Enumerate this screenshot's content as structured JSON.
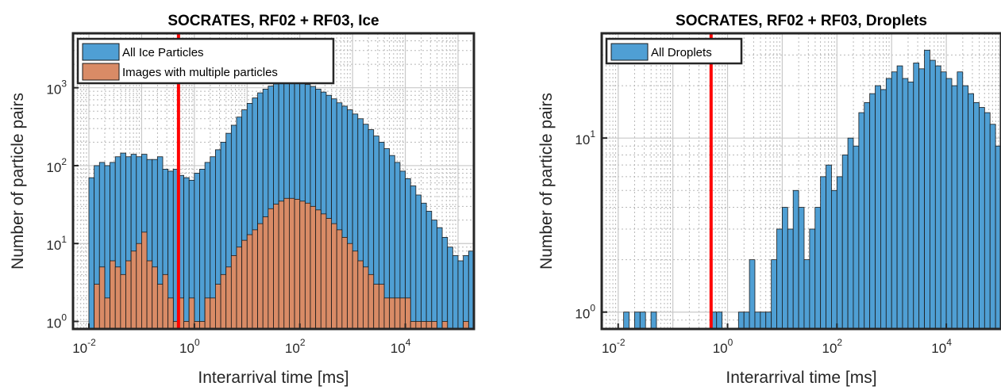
{
  "chart_data": [
    {
      "type": "bar",
      "title": "SOCRATES, RF02 + RF03, Ice",
      "xlabel": "Interarrival time [ms]",
      "ylabel": "Number of particle pairs",
      "xscale": "log",
      "yscale": "log",
      "xlim": [
        0.005,
        200000
      ],
      "ylim": [
        0.8,
        5000
      ],
      "xticks": [
        0.01,
        1,
        100,
        10000
      ],
      "yticks": [
        1,
        10,
        100,
        1000
      ],
      "xtick_labels": [
        {
          "base": "10",
          "exp": "-2"
        },
        {
          "base": "10",
          "exp": "0"
        },
        {
          "base": "10",
          "exp": "2"
        },
        {
          "base": "10",
          "exp": "4"
        }
      ],
      "ytick_labels": [
        {
          "base": "10",
          "exp": "0"
        },
        {
          "base": "10",
          "exp": "1"
        },
        {
          "base": "10",
          "exp": "2"
        },
        {
          "base": "10",
          "exp": "3"
        }
      ],
      "grid": true,
      "minor_grid": true,
      "legend_position": "top-left",
      "threshold_line_x": 0.5,
      "threshold_line_color": "#ff0000",
      "bin_log10_start": -2.0,
      "bin_log10_width": 0.1,
      "series": [
        {
          "name": "All Ice Particles",
          "color": "#4f9fd4",
          "values": [
            70,
            100,
            110,
            100,
            110,
            130,
            145,
            130,
            140,
            130,
            140,
            120,
            120,
            130,
            90,
            85,
            90,
            75,
            70,
            65,
            80,
            90,
            110,
            130,
            160,
            200,
            260,
            330,
            420,
            520,
            630,
            740,
            860,
            960,
            1050,
            1120,
            1160,
            1180,
            1180,
            1170,
            1140,
            1100,
            1040,
            960,
            880,
            800,
            720,
            640,
            580,
            520,
            460,
            400,
            340,
            290,
            240,
            200,
            165,
            135,
            110,
            85,
            68,
            55,
            42,
            33,
            26,
            20,
            16,
            12,
            9,
            7,
            6,
            7,
            8,
            6,
            5
          ]
        },
        {
          "name": "Images with multiple particles",
          "color": "#d98b66",
          "values": [
            0,
            3,
            5,
            2,
            6,
            5,
            4,
            6,
            8,
            10,
            14,
            6,
            5,
            3,
            4,
            2,
            1,
            2,
            1,
            2,
            1,
            1,
            2,
            2,
            3,
            4,
            5,
            7,
            9,
            11,
            13,
            15,
            18,
            22,
            28,
            32,
            35,
            38,
            38,
            37,
            35,
            33,
            30,
            27,
            24,
            21,
            18,
            15,
            12,
            10,
            8,
            6,
            5,
            4,
            3,
            3,
            2,
            2,
            2,
            2,
            2,
            1,
            1,
            1,
            1,
            1,
            0,
            1,
            0,
            0,
            0,
            1,
            0,
            0,
            0
          ]
        }
      ]
    },
    {
      "type": "bar",
      "title": "SOCRATES, RF02 + RF03, Droplets",
      "xlabel": "Interarrival time [ms]",
      "ylabel": "Number of particle pairs",
      "xscale": "log",
      "yscale": "log",
      "xlim": [
        0.005,
        100000
      ],
      "ylim": [
        0.8,
        40
      ],
      "xticks": [
        0.01,
        1,
        100,
        10000
      ],
      "yticks": [
        1,
        10
      ],
      "xtick_labels": [
        {
          "base": "10",
          "exp": "-2"
        },
        {
          "base": "10",
          "exp": "0"
        },
        {
          "base": "10",
          "exp": "2"
        },
        {
          "base": "10",
          "exp": "4"
        }
      ],
      "ytick_labels": [
        {
          "base": "10",
          "exp": "0"
        },
        {
          "base": "10",
          "exp": "1"
        }
      ],
      "grid": true,
      "minor_grid": true,
      "legend_position": "top-left",
      "threshold_line_x": 0.5,
      "threshold_line_color": "#ff0000",
      "bin_log10_start": -2.0,
      "bin_log10_width": 0.1,
      "series": [
        {
          "name": "All Droplets",
          "color": "#4f9fd4",
          "values": [
            0,
            1,
            0,
            1,
            1,
            0,
            1,
            0,
            0,
            0,
            0,
            0,
            0,
            0,
            0,
            0,
            0,
            1,
            1,
            0,
            0,
            0,
            1,
            1,
            2,
            1,
            1,
            1,
            2,
            3,
            4,
            3,
            5,
            4,
            2,
            3,
            4,
            6,
            7,
            5,
            6,
            8,
            10,
            9,
            14,
            16,
            18,
            20,
            19,
            22,
            24,
            26,
            22,
            21,
            27,
            25,
            32,
            28,
            26,
            24,
            22,
            20,
            24,
            20,
            18,
            16,
            15,
            14,
            12,
            9,
            8,
            7,
            6,
            5,
            4,
            3,
            3,
            3,
            2,
            2,
            2,
            2,
            1,
            2,
            1,
            1,
            1,
            0,
            1,
            1,
            1,
            2
          ]
        }
      ]
    }
  ]
}
